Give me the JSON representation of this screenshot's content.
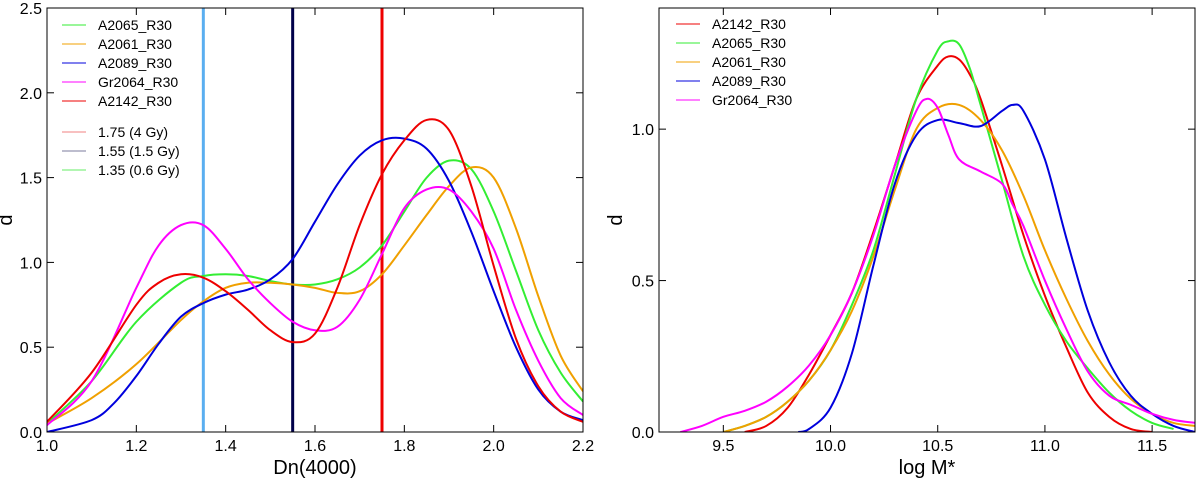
{
  "chart_data": [
    {
      "type": "line",
      "title": "",
      "xlabel": "Dn(4000)",
      "ylabel": "d",
      "xlim": [
        1.0,
        2.2
      ],
      "ylim": [
        0.0,
        2.5
      ],
      "xticks": [
        1.0,
        1.2,
        1.4,
        1.6,
        1.8,
        2.0,
        2.2
      ],
      "xtick_labels": [
        "1.0",
        "1.2",
        "1.4",
        "1.6",
        "1.8",
        "2.0",
        "2.2"
      ],
      "yticks": [
        0.0,
        0.5,
        1.0,
        1.5,
        2.0,
        2.5
      ],
      "ytick_labels": [
        "0.0",
        "0.5",
        "1.0",
        "1.5",
        "2.0",
        "2.5"
      ],
      "legend_position": "top-left",
      "series": [
        {
          "name": "A2065_R30",
          "color": "#33ee33",
          "x": [
            1.0,
            1.1,
            1.2,
            1.3,
            1.35,
            1.4,
            1.45,
            1.5,
            1.55,
            1.6,
            1.65,
            1.7,
            1.75,
            1.8,
            1.85,
            1.9,
            1.95,
            2.0,
            2.05,
            2.1,
            2.15,
            2.2
          ],
          "y": [
            0.05,
            0.3,
            0.65,
            0.88,
            0.92,
            0.93,
            0.92,
            0.89,
            0.87,
            0.87,
            0.9,
            0.97,
            1.1,
            1.3,
            1.5,
            1.6,
            1.55,
            1.3,
            0.95,
            0.6,
            0.35,
            0.18
          ]
        },
        {
          "name": "A2061_R30",
          "color": "#f0a000",
          "x": [
            1.0,
            1.1,
            1.2,
            1.3,
            1.35,
            1.4,
            1.45,
            1.5,
            1.55,
            1.6,
            1.65,
            1.7,
            1.75,
            1.8,
            1.85,
            1.9,
            1.95,
            2.0,
            2.05,
            2.1,
            2.15,
            2.2
          ],
          "y": [
            0.05,
            0.2,
            0.4,
            0.66,
            0.77,
            0.85,
            0.88,
            0.88,
            0.87,
            0.85,
            0.82,
            0.83,
            0.93,
            1.1,
            1.28,
            1.45,
            1.56,
            1.5,
            1.2,
            0.8,
            0.45,
            0.24
          ]
        },
        {
          "name": "A2089_R30",
          "color": "#0000dd",
          "x": [
            1.0,
            1.1,
            1.15,
            1.2,
            1.25,
            1.3,
            1.35,
            1.4,
            1.45,
            1.5,
            1.55,
            1.6,
            1.65,
            1.7,
            1.75,
            1.8,
            1.85,
            1.9,
            1.95,
            2.0,
            2.05,
            2.1,
            2.15,
            2.2
          ],
          "y": [
            0.0,
            0.07,
            0.17,
            0.33,
            0.52,
            0.68,
            0.76,
            0.81,
            0.84,
            0.9,
            1.02,
            1.24,
            1.46,
            1.63,
            1.72,
            1.73,
            1.67,
            1.48,
            1.18,
            0.83,
            0.5,
            0.25,
            0.12,
            0.07
          ]
        },
        {
          "name": "Gr2064_R30",
          "color": "#ff00ff",
          "x": [
            1.0,
            1.1,
            1.2,
            1.25,
            1.3,
            1.35,
            1.4,
            1.45,
            1.5,
            1.55,
            1.6,
            1.65,
            1.7,
            1.75,
            1.8,
            1.85,
            1.9,
            1.95,
            2.0,
            2.05,
            2.1,
            2.15,
            2.2
          ],
          "y": [
            0.04,
            0.3,
            0.85,
            1.1,
            1.22,
            1.22,
            1.08,
            0.9,
            0.76,
            0.65,
            0.6,
            0.62,
            0.78,
            1.05,
            1.32,
            1.43,
            1.43,
            1.3,
            1.08,
            0.72,
            0.42,
            0.2,
            0.1
          ]
        },
        {
          "name": "A2142_R30",
          "color": "#ee0000",
          "x": [
            1.0,
            1.1,
            1.2,
            1.25,
            1.3,
            1.35,
            1.4,
            1.45,
            1.5,
            1.55,
            1.6,
            1.65,
            1.7,
            1.75,
            1.8,
            1.85,
            1.9,
            1.95,
            2.0,
            2.05,
            2.1,
            2.15,
            2.2
          ],
          "y": [
            0.06,
            0.35,
            0.75,
            0.88,
            0.93,
            0.91,
            0.83,
            0.72,
            0.6,
            0.53,
            0.58,
            0.85,
            1.22,
            1.52,
            1.72,
            1.84,
            1.78,
            1.45,
            0.98,
            0.55,
            0.27,
            0.12,
            0.06
          ]
        }
      ],
      "vertical_lines": [
        {
          "name": "1.75 (4 Gy)",
          "x": 1.75,
          "color": "#ee0000",
          "legend_color": "#f08080"
        },
        {
          "name": "1.55 (1.5 Gy)",
          "x": 1.55,
          "color": "#00004a",
          "legend_color": "#7b7b9e"
        },
        {
          "name": "1.35 (0.6 Gy)",
          "x": 1.35,
          "color": "#5aaef0",
          "legend_color": "#66ee66"
        }
      ]
    },
    {
      "type": "line",
      "title": "",
      "xlabel": "log M*",
      "ylabel": "d",
      "xlim": [
        9.2,
        11.7
      ],
      "ylim": [
        0.0,
        1.4
      ],
      "xticks": [
        9.5,
        10.0,
        10.5,
        11.0,
        11.5
      ],
      "xtick_labels": [
        "9.5",
        "10.0",
        "10.5",
        "11.0",
        "11.5"
      ],
      "yticks": [
        0.0,
        0.5,
        1.0
      ],
      "ytick_labels": [
        "0.0",
        "0.5",
        "1.0"
      ],
      "legend_position": "top-left",
      "series": [
        {
          "name": "A2142_R30",
          "color": "#ee0000",
          "x": [
            9.6,
            9.7,
            9.8,
            9.9,
            10.0,
            10.1,
            10.2,
            10.3,
            10.4,
            10.5,
            10.55,
            10.6,
            10.65,
            10.7,
            10.8,
            10.9,
            11.0,
            11.1,
            11.2,
            11.3,
            11.4,
            11.5
          ],
          "y": [
            0.0,
            0.02,
            0.08,
            0.19,
            0.32,
            0.46,
            0.66,
            0.88,
            1.1,
            1.21,
            1.24,
            1.23,
            1.18,
            1.1,
            0.88,
            0.65,
            0.45,
            0.28,
            0.13,
            0.05,
            0.01,
            0.0
          ]
        },
        {
          "name": "A2065_R30",
          "color": "#33ee33",
          "x": [
            9.5,
            9.6,
            9.7,
            9.8,
            9.9,
            10.0,
            10.1,
            10.2,
            10.3,
            10.4,
            10.5,
            10.55,
            10.6,
            10.65,
            10.7,
            10.8,
            10.9,
            11.0,
            11.1,
            11.2,
            11.3,
            11.4,
            11.5,
            11.6
          ],
          "y": [
            0.0,
            0.02,
            0.05,
            0.1,
            0.17,
            0.27,
            0.42,
            0.6,
            0.85,
            1.1,
            1.26,
            1.29,
            1.28,
            1.2,
            1.08,
            0.83,
            0.58,
            0.42,
            0.3,
            0.21,
            0.13,
            0.07,
            0.03,
            0.01
          ]
        },
        {
          "name": "A2061_R30",
          "color": "#f0a000",
          "x": [
            9.5,
            9.6,
            9.7,
            9.8,
            9.9,
            10.0,
            10.1,
            10.2,
            10.3,
            10.4,
            10.5,
            10.6,
            10.7,
            10.8,
            10.9,
            11.0,
            11.1,
            11.2,
            11.3,
            11.4,
            11.5,
            11.6,
            11.7
          ],
          "y": [
            0.0,
            0.02,
            0.05,
            0.1,
            0.17,
            0.27,
            0.4,
            0.58,
            0.8,
            1.0,
            1.07,
            1.08,
            1.03,
            0.93,
            0.78,
            0.6,
            0.44,
            0.3,
            0.19,
            0.11,
            0.06,
            0.03,
            0.02
          ]
        },
        {
          "name": "A2089_R30",
          "color": "#0000dd",
          "x": [
            9.85,
            9.9,
            10.0,
            10.1,
            10.2,
            10.3,
            10.4,
            10.5,
            10.6,
            10.7,
            10.8,
            10.85,
            10.9,
            11.0,
            11.1,
            11.2,
            11.3,
            11.4,
            11.5,
            11.6,
            11.7
          ],
          "y": [
            0.0,
            0.01,
            0.08,
            0.26,
            0.55,
            0.82,
            0.98,
            1.03,
            1.02,
            1.01,
            1.06,
            1.08,
            1.06,
            0.9,
            0.64,
            0.4,
            0.23,
            0.12,
            0.06,
            0.02,
            0.0
          ]
        },
        {
          "name": "Gr2064_R30",
          "color": "#ff00ff",
          "x": [
            9.3,
            9.4,
            9.5,
            9.6,
            9.7,
            9.8,
            9.9,
            10.0,
            10.1,
            10.2,
            10.3,
            10.4,
            10.45,
            10.5,
            10.55,
            10.6,
            10.7,
            10.8,
            10.85,
            10.9,
            11.0,
            11.1,
            11.2,
            11.3,
            11.4,
            11.5,
            11.6,
            11.7
          ],
          "y": [
            0.0,
            0.02,
            0.05,
            0.07,
            0.1,
            0.15,
            0.22,
            0.32,
            0.46,
            0.65,
            0.88,
            1.06,
            1.1,
            1.07,
            0.98,
            0.9,
            0.86,
            0.82,
            0.75,
            0.68,
            0.5,
            0.34,
            0.2,
            0.12,
            0.09,
            0.06,
            0.04,
            0.03
          ]
        }
      ]
    }
  ]
}
